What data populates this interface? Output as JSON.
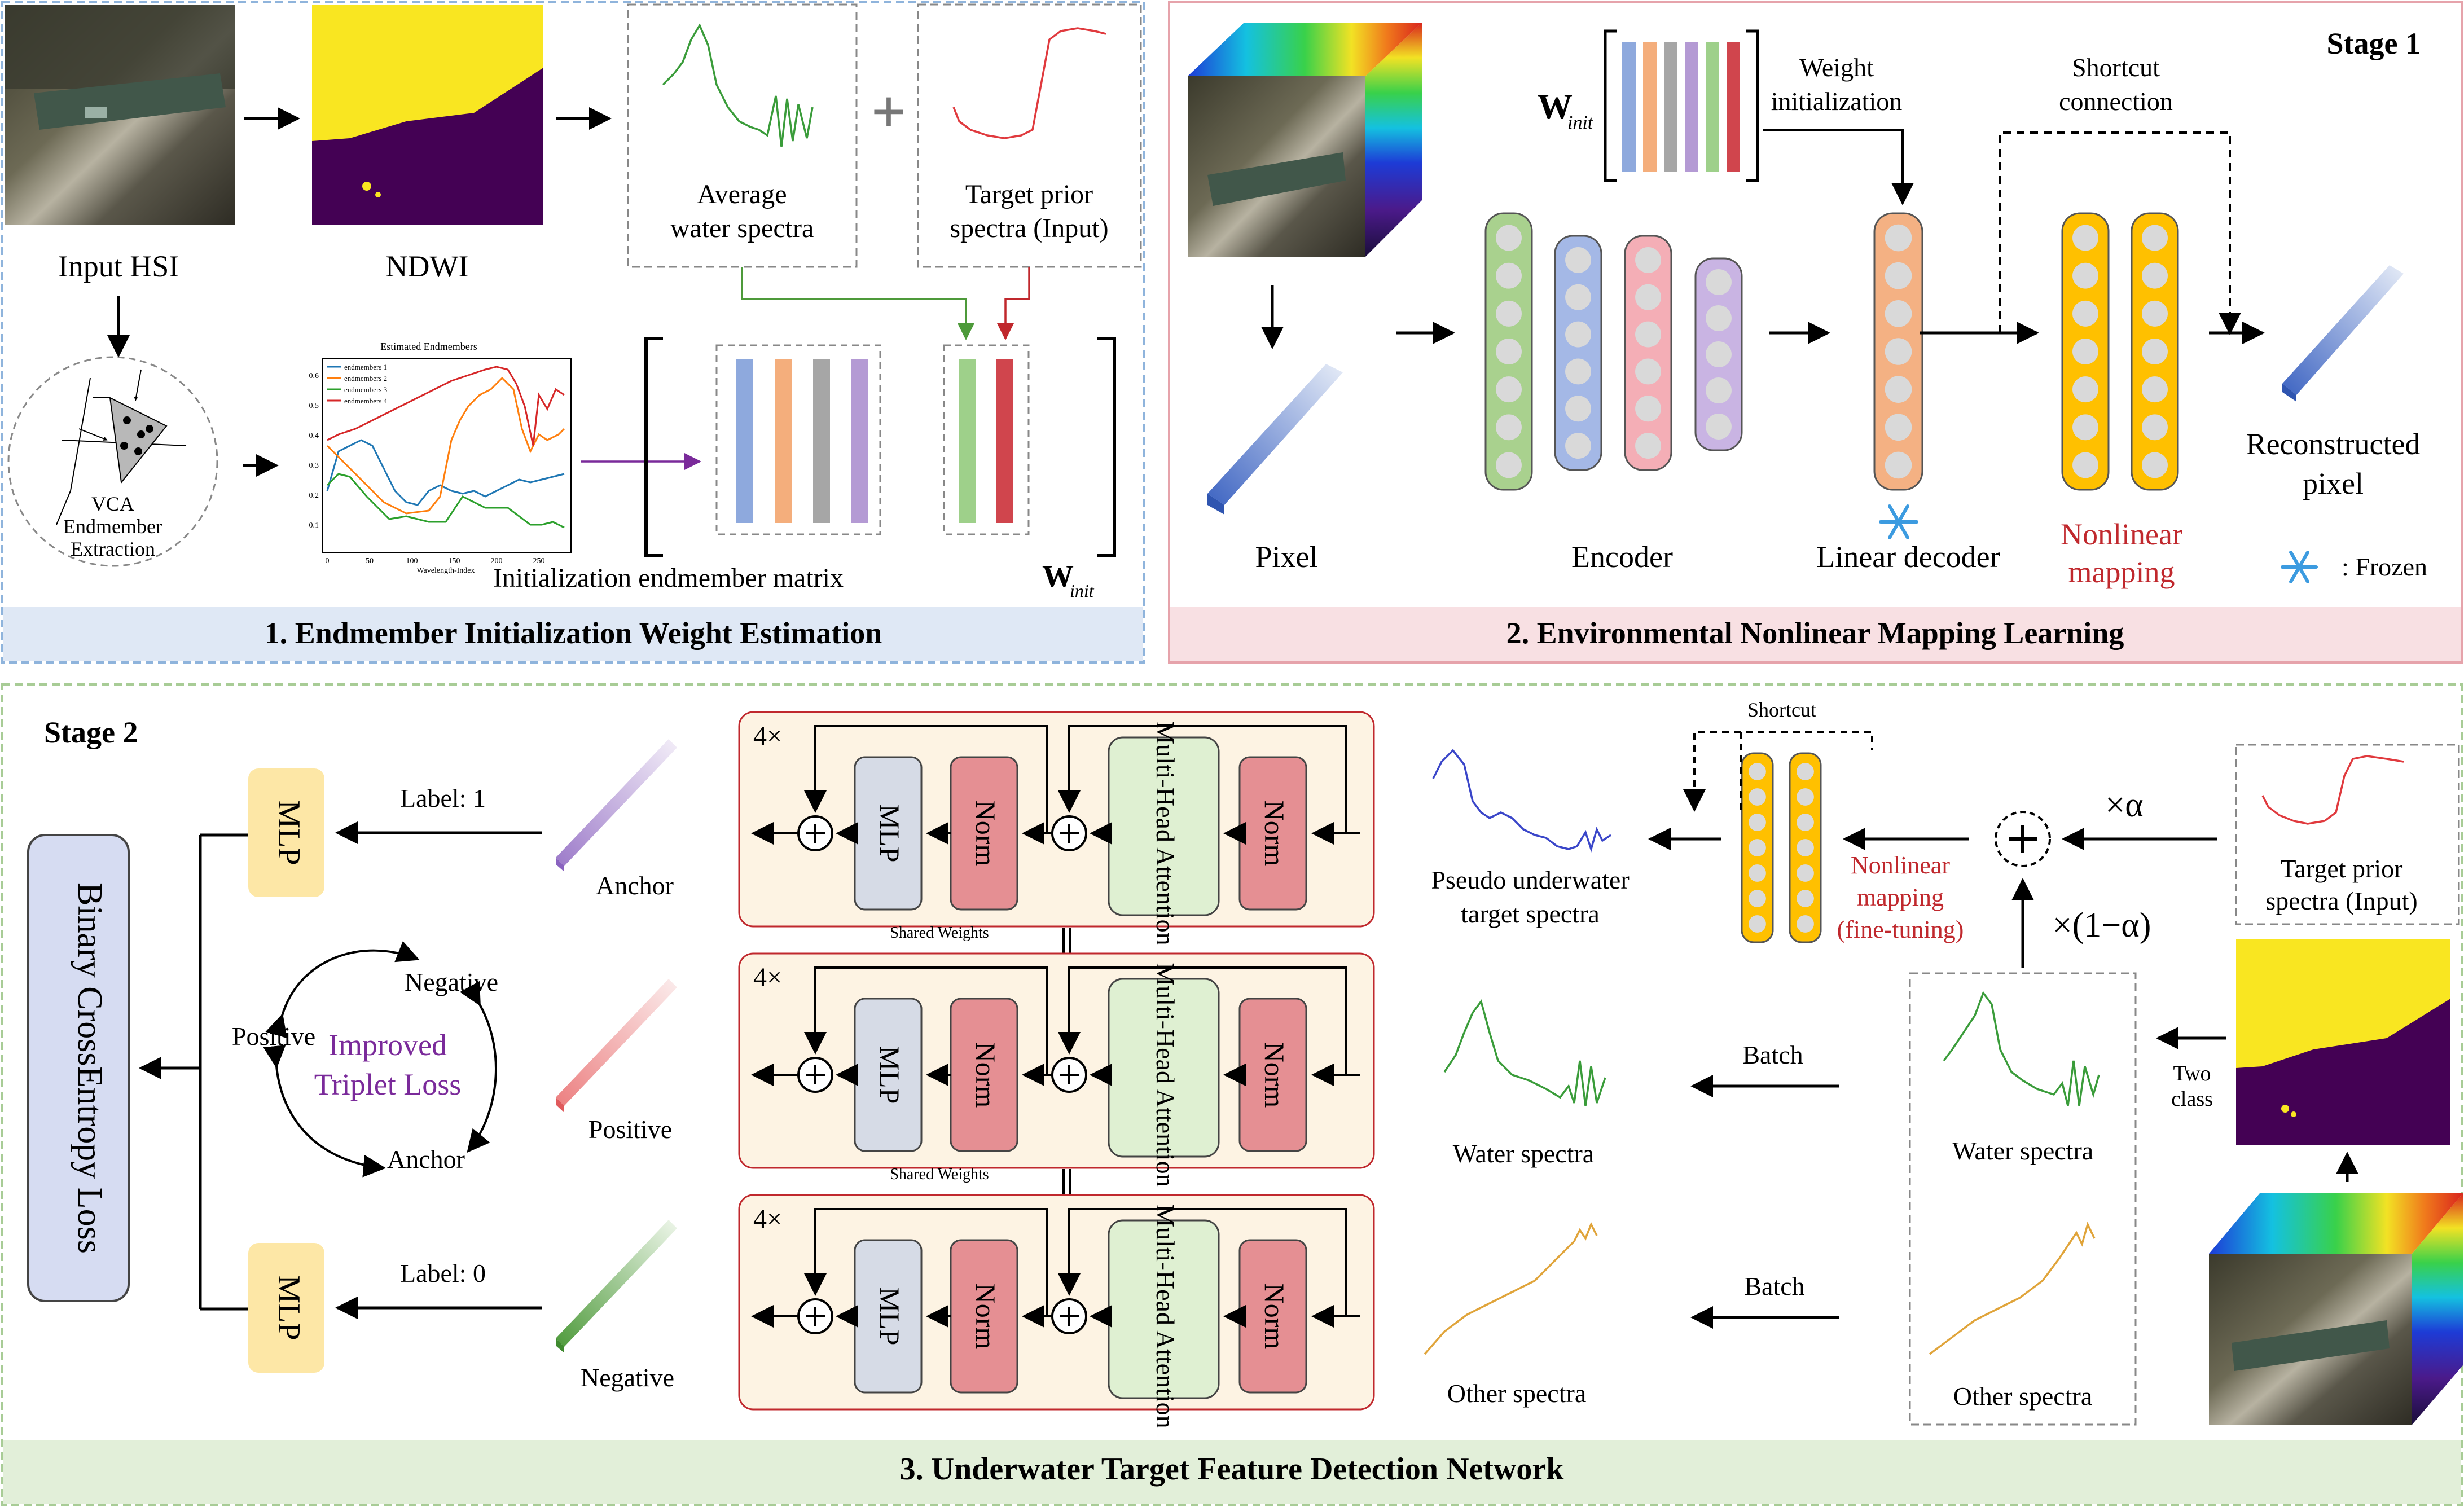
{
  "panel1": {
    "title": "1. Endmember Initialization Weight Estimation",
    "input_hsi": "Input HSI",
    "ndwi": "NDWI",
    "avg_water_line1": "Average",
    "avg_water_line2": "water spectra",
    "prior_line1": "Target prior",
    "prior_line2": "spectra (Input)",
    "plus": "+",
    "vca_line1": "VCA",
    "vca_line2": "Endmember",
    "vca_line3": "Extraction",
    "init_matrix_label": "Initialization  endmember matrix",
    "w_symbol": "W",
    "w_subscript": "init",
    "plot": {
      "title": "Estimated Endmembers",
      "xlabel": "Wavelength-Index",
      "xticks": [
        "0",
        "50",
        "100",
        "150",
        "200",
        "250"
      ],
      "yticks": [
        "0.1",
        "0.2",
        "0.3",
        "0.4",
        "0.5",
        "0.6"
      ],
      "legend": [
        "endmembers 1",
        "endmembers 2",
        "endmembers 3",
        "endmembers 4"
      ],
      "colors": [
        "#1f77b4",
        "#ff7f0e",
        "#2ca02c",
        "#d62728"
      ]
    },
    "bar_colors": [
      "#8ea9dd",
      "#f4ae7c",
      "#a6a6a6",
      "#b49ad4"
    ],
    "extra_bar_colors": [
      "#9ed08a",
      "#d0454d"
    ]
  },
  "panel2": {
    "title": "2. Environmental Nonlinear Mapping Learning",
    "stage": "Stage 1",
    "pixel": "Pixel",
    "encoder": "Encoder",
    "linear_decoder": "Linear decoder",
    "nonlinear_line1": "Nonlinear",
    "nonlinear_line2": "mapping",
    "reconstructed_line1": "Reconstructed",
    "reconstructed_line2": "pixel",
    "frozen": ": Frozen",
    "weight_init_line1": "Weight",
    "weight_init_line2": "initialization",
    "shortcut_line1": "Shortcut",
    "shortcut_line2": "connection",
    "w_symbol": "W",
    "w_subscript": "init",
    "winit_colors": [
      "#8ea9dd",
      "#f4ae7c",
      "#a6a6a6",
      "#b49ad4",
      "#9ed08a",
      "#d0454d"
    ]
  },
  "panel3": {
    "title": "3. Underwater Target Feature Detection Network",
    "stage": "Stage 2",
    "bce": "Binary CrossEntropy Loss",
    "mlp": "MLP",
    "label1": "Label:  1",
    "label0": "Label:  0",
    "anchor": "Anchor",
    "positive": "Positive",
    "negative": "Negative",
    "triplet_line1": "Improved",
    "triplet_line2": "Triplet Loss",
    "repeat": "4×",
    "block_mlp": "MLP",
    "block_norm": "Norm",
    "block_mha": "Multi-Head Attention",
    "shared_weights": "Shared Weights",
    "pseudo_line1": "Pseudo underwater",
    "pseudo_line2": "target spectra",
    "water_spectra": "Water spectra",
    "other_spectra": "Other spectra",
    "batch": "Batch",
    "shortcut": "Shortcut",
    "nonlinear_line1": "Nonlinear",
    "nonlinear_line2": "mapping",
    "nonlinear_line3": "(fine-tuning)",
    "alpha": "×α",
    "one_minus_alpha": "×(1−α)",
    "two_class_line1": "Two",
    "two_class_line2": "class",
    "prior_line1": "Target prior",
    "prior_line2": "spectra (Input)"
  }
}
